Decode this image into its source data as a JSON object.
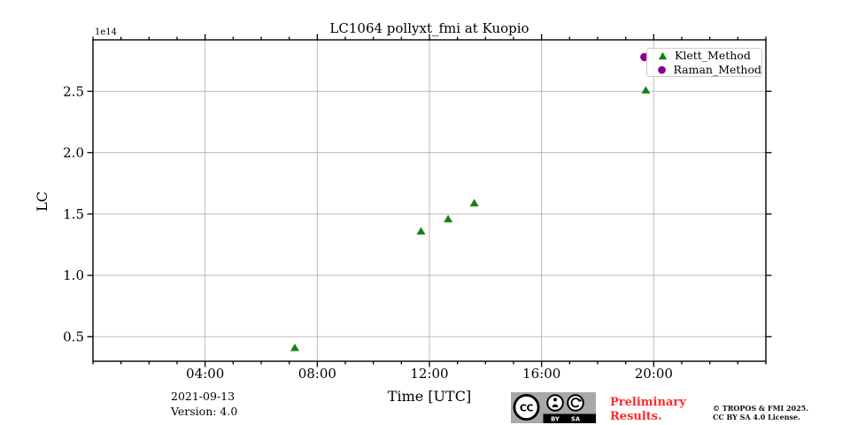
{
  "chart_data": {
    "type": "scatter",
    "title": "LC1064 pollyxt_fmi at Kuopio",
    "xlabel": "Time [UTC]",
    "ylabel": "LC",
    "y_offset_text": "1e14",
    "y_unit_multiplier": "1e14",
    "xlim_hours": [
      0,
      24
    ],
    "ylim": [
      0.3,
      2.92
    ],
    "x_major_ticks": [
      {
        "hour": 4,
        "label": "04:00"
      },
      {
        "hour": 8,
        "label": "08:00"
      },
      {
        "hour": 12,
        "label": "12:00"
      },
      {
        "hour": 16,
        "label": "16:00"
      },
      {
        "hour": 20,
        "label": "20:00"
      }
    ],
    "x_minor_tick_every_hours": 1,
    "y_ticks": [
      0.5,
      1.0,
      1.5,
      2.0,
      2.5
    ],
    "grid": true,
    "grid_color": "#bbbbbb",
    "spine_color": "#000000",
    "legend_position": "upper right",
    "series": [
      {
        "name": "Klett_Method",
        "marker": "triangle",
        "color": "#128312",
        "points": [
          {
            "time": "07:12",
            "lc_1e14": 0.41
          },
          {
            "time": "11:42",
            "lc_1e14": 1.36
          },
          {
            "time": "12:40",
            "lc_1e14": 1.46
          },
          {
            "time": "13:36",
            "lc_1e14": 1.59
          },
          {
            "time": "19:43",
            "lc_1e14": 2.51
          }
        ]
      },
      {
        "name": "Raman_Method",
        "marker": "circle",
        "color": "#8b008b",
        "points": [
          {
            "time": "19:40",
            "lc_1e14": 2.78
          }
        ]
      }
    ]
  },
  "footer": {
    "date": "2021-09-13",
    "version": "Version: 4.0",
    "preliminary_line1": "Preliminary",
    "preliminary_line2": "Results.",
    "preliminary_color": "#fb2b2b",
    "copyright_line1": "© TROPOS & FMI 2025.",
    "copyright_line2": "CC BY SA 4.0 License.",
    "badge": {
      "name": "CC BY-SA license badge",
      "cc_label": "CC",
      "by_label": "BY",
      "sa_label": "SA"
    }
  }
}
